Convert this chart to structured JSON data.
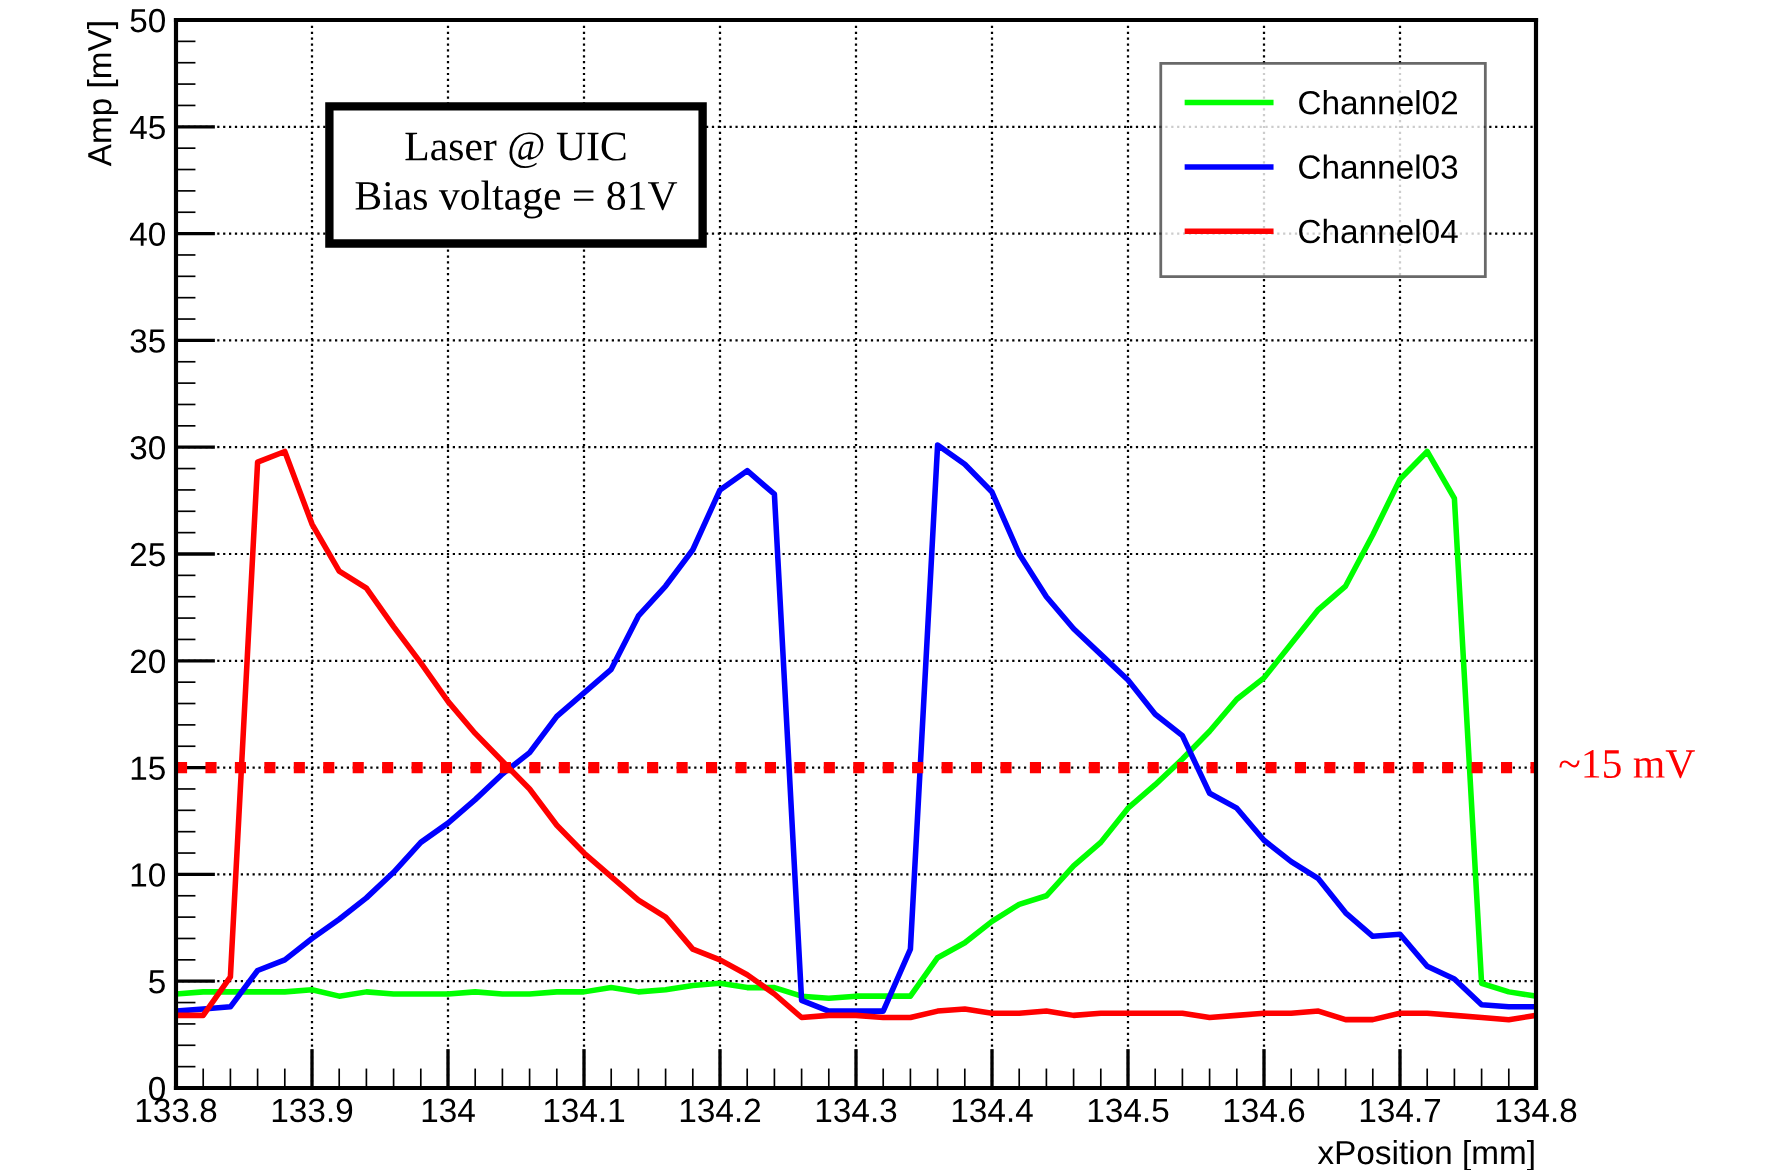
{
  "chart_data": {
    "type": "line",
    "xlabel": "xPosition [mm]",
    "ylabel": "Amp [mV]",
    "x": [
      133.8,
      133.82,
      133.84,
      133.86,
      133.88,
      133.9,
      133.92,
      133.94,
      133.96,
      133.98,
      134.0,
      134.02,
      134.04,
      134.06,
      134.08,
      134.1,
      134.12,
      134.14,
      134.16,
      134.18,
      134.2,
      134.22,
      134.24,
      134.26,
      134.28,
      134.3,
      134.32,
      134.34,
      134.36,
      134.38,
      134.4,
      134.42,
      134.44,
      134.46,
      134.48,
      134.5,
      134.52,
      134.54,
      134.56,
      134.58,
      134.6,
      134.62,
      134.64,
      134.66,
      134.68,
      134.7,
      134.72,
      134.74,
      134.76,
      134.78,
      134.8
    ],
    "series": [
      {
        "name": "Channel02",
        "color": "#00ff00",
        "values": [
          4.4,
          4.5,
          4.5,
          4.5,
          4.5,
          4.6,
          4.3,
          4.5,
          4.4,
          4.4,
          4.4,
          4.5,
          4.4,
          4.4,
          4.5,
          4.5,
          4.7,
          4.5,
          4.6,
          4.8,
          4.9,
          4.7,
          4.7,
          4.3,
          4.2,
          4.3,
          4.3,
          4.3,
          6.1,
          6.8,
          7.8,
          8.6,
          9.0,
          10.4,
          11.5,
          13.1,
          14.2,
          15.4,
          16.7,
          18.2,
          19.2,
          20.8,
          22.4,
          23.5,
          25.9,
          28.5,
          29.8,
          27.6,
          4.9,
          4.5,
          4.3
        ]
      },
      {
        "name": "Channel03",
        "color": "#0000ff",
        "values": [
          3.6,
          3.7,
          3.8,
          5.5,
          6.0,
          7.0,
          7.9,
          8.9,
          10.1,
          11.5,
          12.4,
          13.5,
          14.7,
          15.7,
          17.4,
          18.5,
          19.6,
          22.1,
          23.5,
          25.2,
          28.0,
          28.9,
          27.8,
          4.1,
          3.6,
          3.6,
          3.6,
          6.5,
          30.1,
          29.2,
          27.9,
          25.0,
          23.0,
          21.5,
          20.3,
          19.1,
          17.5,
          16.5,
          13.8,
          13.1,
          11.6,
          10.6,
          9.8,
          8.2,
          7.1,
          7.2,
          5.7,
          5.1,
          3.9,
          3.8,
          3.8
        ]
      },
      {
        "name": "Channel04",
        "color": "#ff0000",
        "values": [
          3.4,
          3.4,
          5.2,
          29.3,
          29.8,
          26.4,
          24.2,
          23.4,
          21.6,
          19.9,
          18.1,
          16.6,
          15.3,
          14.0,
          12.3,
          11.0,
          9.9,
          8.8,
          8.0,
          6.5,
          6.0,
          5.3,
          4.4,
          3.3,
          3.4,
          3.4,
          3.3,
          3.3,
          3.6,
          3.7,
          3.5,
          3.5,
          3.6,
          3.4,
          3.5,
          3.5,
          3.5,
          3.5,
          3.3,
          3.4,
          3.5,
          3.5,
          3.6,
          3.2,
          3.2,
          3.5,
          3.5,
          3.4,
          3.3,
          3.2,
          3.4
        ]
      }
    ],
    "xlim": [
      133.8,
      134.8
    ],
    "xticks": [
      {
        "value": 133.8,
        "label": "133.8"
      },
      {
        "value": 133.9,
        "label": "133.9"
      },
      {
        "value": 134,
        "label": "134"
      },
      {
        "value": 134.1,
        "label": "134.1"
      },
      {
        "value": 134.2,
        "label": "134.2"
      },
      {
        "value": 134.3,
        "label": "134.3"
      },
      {
        "value": 134.4,
        "label": "134.4"
      },
      {
        "value": 134.5,
        "label": "134.5"
      },
      {
        "value": 134.6,
        "label": "134.6"
      },
      {
        "value": 134.7,
        "label": "134.7"
      },
      {
        "value": 134.8,
        "label": "134.8"
      }
    ],
    "ylim": [
      0,
      50
    ],
    "yticks": [
      0,
      5,
      10,
      15,
      20,
      25,
      30,
      35,
      40,
      45,
      50
    ],
    "ref_lines": [
      {
        "axis": "y",
        "value": 15,
        "label": "~15 mV",
        "color": "#ff0000",
        "line_style": "dotted"
      }
    ],
    "annotations": [
      "Laser @ UIC\nBias voltage = 81V"
    ],
    "grid": true,
    "legend": "top right",
    "marker": "none",
    "line_style": "solid"
  }
}
